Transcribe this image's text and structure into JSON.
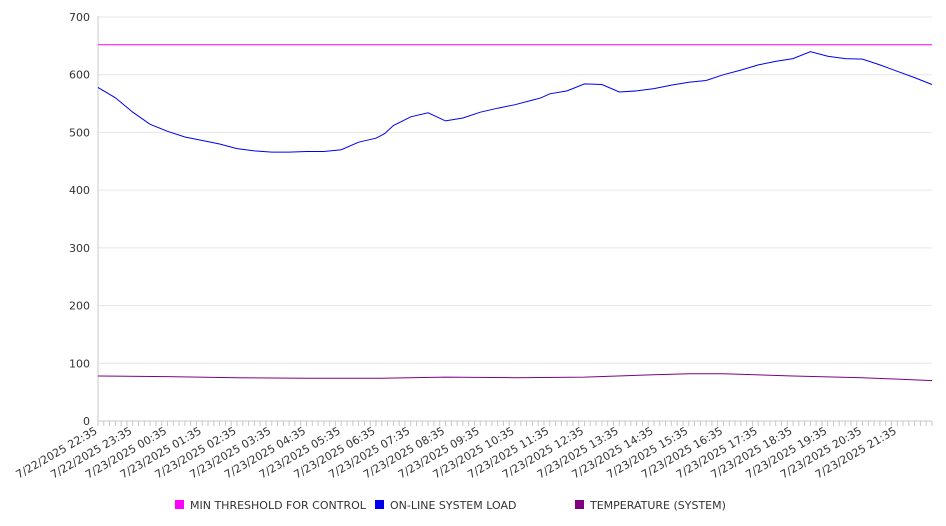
{
  "chart_data": {
    "type": "line",
    "ylim": [
      0,
      700
    ],
    "y_ticks": [
      0,
      100,
      200,
      300,
      400,
      500,
      600,
      700
    ],
    "x_tick_labels": [
      "7/22/2025 22:35",
      "7/22/2025 23:35",
      "7/23/2025 00:35",
      "7/23/2025 01:35",
      "7/23/2025 02:35",
      "7/23/2025 03:35",
      "7/23/2025 04:35",
      "7/23/2025 05:35",
      "7/23/2025 06:35",
      "7/23/2025 07:35",
      "7/23/2025 08:35",
      "7/23/2025 09:35",
      "7/23/2025 10:35",
      "7/23/2025 11:35",
      "7/23/2025 12:35",
      "7/23/2025 13:35",
      "7/23/2025 14:35",
      "7/23/2025 15:35",
      "7/23/2025 16:35",
      "7/23/2025 17:35",
      "7/23/2025 18:35",
      "7/23/2025 19:35",
      "7/23/2025 20:35",
      "7/23/2025 21:35"
    ],
    "grid": true,
    "legend_position": "bottom",
    "series": [
      {
        "name": "MIN THRESHOLD FOR CONTROL",
        "color": "#ff00ff",
        "x": [
          "7/22/2025 22:35",
          "7/23/2025 22:35"
        ],
        "values": [
          652,
          652
        ]
      },
      {
        "name": "ON-LINE SYSTEM LOAD",
        "color": "#0000ee",
        "x": [
          "7/22/2025 22:35",
          "7/22/2025 23:05",
          "7/22/2025 23:35",
          "7/23/2025 00:05",
          "7/23/2025 00:35",
          "7/23/2025 01:05",
          "7/23/2025 01:35",
          "7/23/2025 02:05",
          "7/23/2025 02:35",
          "7/23/2025 03:05",
          "7/23/2025 03:35",
          "7/23/2025 04:05",
          "7/23/2025 04:35",
          "7/23/2025 05:05",
          "7/23/2025 05:35",
          "7/23/2025 06:05",
          "7/23/2025 06:35",
          "7/23/2025 06:50",
          "7/23/2025 07:05",
          "7/23/2025 07:35",
          "7/23/2025 08:05",
          "7/23/2025 08:35",
          "7/23/2025 09:05",
          "7/23/2025 09:35",
          "7/23/2025 10:05",
          "7/23/2025 10:35",
          "7/23/2025 11:05",
          "7/23/2025 11:20",
          "7/23/2025 11:35",
          "7/23/2025 12:05",
          "7/23/2025 12:35",
          "7/23/2025 13:05",
          "7/23/2025 13:35",
          "7/23/2025 14:05",
          "7/23/2025 14:35",
          "7/23/2025 15:05",
          "7/23/2025 15:35",
          "7/23/2025 16:05",
          "7/23/2025 16:35",
          "7/23/2025 17:05",
          "7/23/2025 17:35",
          "7/23/2025 18:05",
          "7/23/2025 18:35",
          "7/23/2025 19:05",
          "7/23/2025 19:35",
          "7/23/2025 20:05",
          "7/23/2025 20:35",
          "7/23/2025 21:05",
          "7/23/2025 21:35",
          "7/23/2025 22:05",
          "7/23/2025 22:35"
        ],
        "values": [
          578,
          560,
          535,
          514,
          502,
          492,
          486,
          480,
          472,
          468,
          466,
          466,
          467,
          467,
          470,
          483,
          490,
          498,
          512,
          527,
          534,
          520,
          525,
          535,
          542,
          548,
          556,
          560,
          567,
          572,
          584,
          583,
          570,
          572,
          576,
          582,
          587,
          590,
          600,
          608,
          617,
          623,
          628,
          640,
          632,
          628,
          627,
          617,
          606,
          595,
          583
        ]
      },
      {
        "name": "TEMPERATURE (SYSTEM)",
        "color": "#800080",
        "x": [
          "7/22/2025 22:35",
          "7/23/2025 00:35",
          "7/23/2025 02:35",
          "7/23/2025 04:35",
          "7/23/2025 06:35",
          "7/23/2025 08:35",
          "7/23/2025 10:35",
          "7/23/2025 12:35",
          "7/23/2025 14:35",
          "7/23/2025 15:35",
          "7/23/2025 16:35",
          "7/23/2025 18:35",
          "7/23/2025 20:35",
          "7/23/2025 22:35"
        ],
        "values": [
          78,
          77,
          75,
          74,
          74,
          76,
          75,
          76,
          80,
          82,
          82,
          78,
          75,
          70
        ]
      }
    ]
  }
}
